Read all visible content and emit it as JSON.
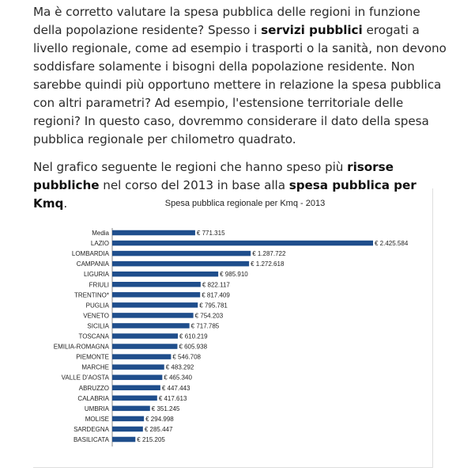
{
  "article": {
    "p1_a": "Ma è corretto valutare la spesa pubblica delle regioni in funzione della popolazione residente? Spesso i ",
    "p1_b": "servizi pubblici",
    "p1_c": " erogati a livello regionale, come ad esempio i trasporti o la sanità, non devono soddisfare solamente i bisogni della popolazione residente. Non sarebbe quindi più opportuno mettere in relazione la spesa pubblica con altri parametri? Ad esempio, l'estensione territoriale delle regioni? In questo caso, dovremmo considerare il dato della spesa pubblica regionale per chilometro quadrato.",
    "p2_a": "Nel grafico seguente le regioni che hanno speso più ",
    "p2_b": "risorse pubbliche",
    "p2_c": " nel corso del 2013 in base alla ",
    "p2_d": "spesa pubblica per Kmq",
    "p2_e": "."
  },
  "chart_data": {
    "type": "bar",
    "orientation": "horizontal",
    "title": "Spesa pubblica regionale per Kmq - 2013",
    "bar_color": "#1f4e8c",
    "categories": [
      "Media",
      "LAZIO",
      "LOMBARDIA",
      "CAMPANIA",
      "LIGURIA",
      "FRIULI",
      "TRENTINO*",
      "PUGLIA",
      "VENETO",
      "SICILIA",
      "TOSCANA",
      "EMILIA-ROMAGNA",
      "PIEMONTE",
      "MARCHE",
      "VALLE D'AOSTA",
      "ABRUZZO",
      "CALABRIA",
      "UMBRIA",
      "MOLISE",
      "SARDEGNA",
      "BASILICATA"
    ],
    "values": [
      771315,
      2425584,
      1287722,
      1272618,
      985910,
      822117,
      817409,
      795781,
      754203,
      717785,
      610219,
      605938,
      546708,
      483292,
      465340,
      447443,
      417613,
      351245,
      294998,
      285447,
      215205
    ],
    "data_labels": [
      "€ 771.315",
      "€ 2.425.584",
      "€ 1.287.722",
      "€ 1.272.618",
      "€ 985.910",
      "€ 822.117",
      "€ 817.409",
      "€ 795.781",
      "€ 754.203",
      "€ 717.785",
      "€ 610.219",
      "€ 605.938",
      "€ 546.708",
      "€ 483.292",
      "€ 465.340",
      "€ 447.443",
      "€ 417.613",
      "€ 351.245",
      "€ 294.998",
      "€ 285.447",
      "€ 215.205"
    ],
    "xlim": [
      0,
      2425584
    ],
    "grid": false,
    "legend": "none"
  }
}
